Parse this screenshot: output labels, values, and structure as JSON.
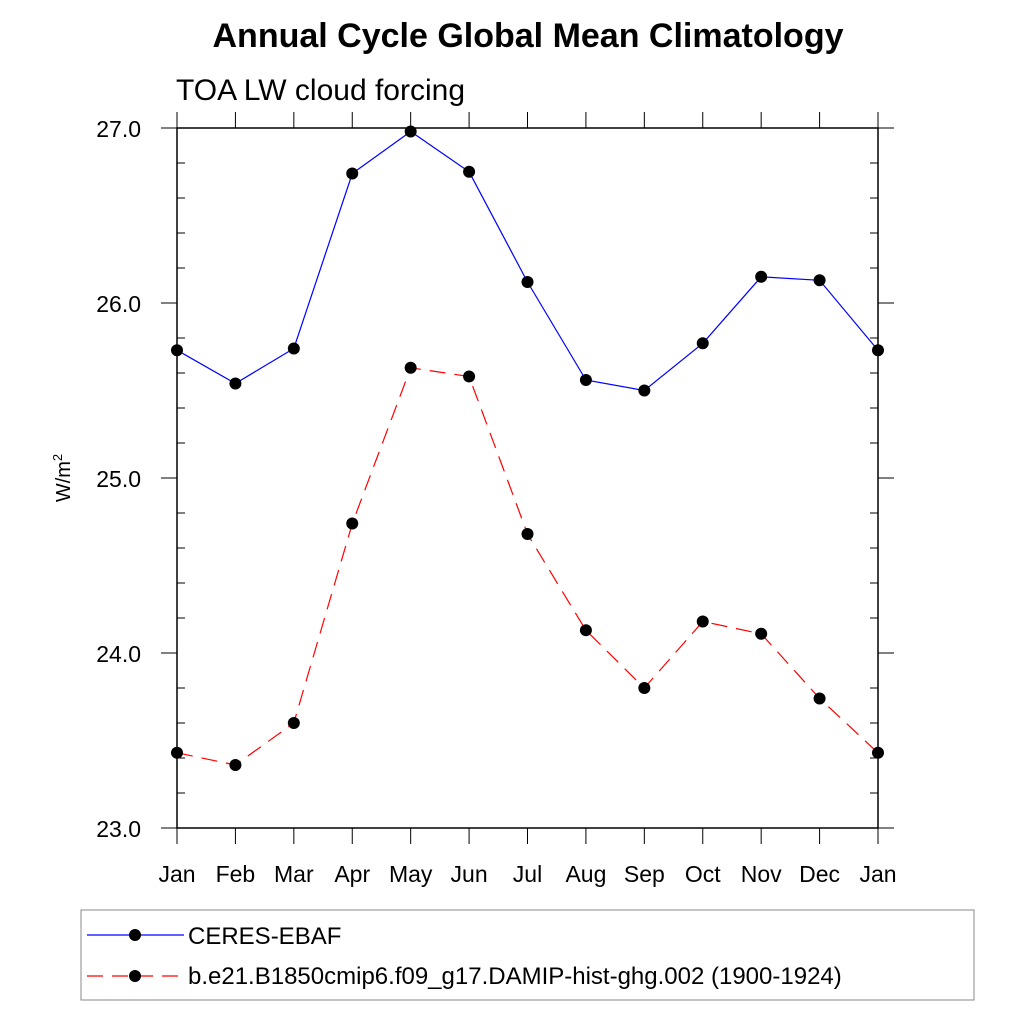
{
  "chart_data": {
    "type": "line",
    "title": "Annual Cycle Global Mean Climatology",
    "subtitle": "TOA LW cloud forcing",
    "ylabel_main": "W/m",
    "ylabel_sup": "2",
    "xlabel": "",
    "categories": [
      "Jan",
      "Feb",
      "Mar",
      "Apr",
      "May",
      "Jun",
      "Jul",
      "Aug",
      "Sep",
      "Oct",
      "Nov",
      "Dec",
      "Jan"
    ],
    "ylim": [
      23.0,
      27.0
    ],
    "yticks": [
      "23.0",
      "24.0",
      "25.0",
      "26.0",
      "27.0"
    ],
    "legend_position": "bottom",
    "series": [
      {
        "name": "CERES-EBAF",
        "color": "#0000ff",
        "dash": "solid",
        "values": [
          25.73,
          25.54,
          25.74,
          26.74,
          26.98,
          26.75,
          26.12,
          25.56,
          25.5,
          25.77,
          26.15,
          26.13,
          25.73
        ]
      },
      {
        "name": "b.e21.B1850cmip6.f09_g17.DAMIP-hist-ghg.002 (1900-1924)",
        "color": "#ff0000",
        "dash": "dashed",
        "values": [
          23.43,
          23.36,
          23.6,
          24.74,
          25.63,
          25.58,
          24.68,
          24.13,
          23.8,
          24.18,
          24.11,
          23.74,
          23.43
        ]
      }
    ]
  }
}
